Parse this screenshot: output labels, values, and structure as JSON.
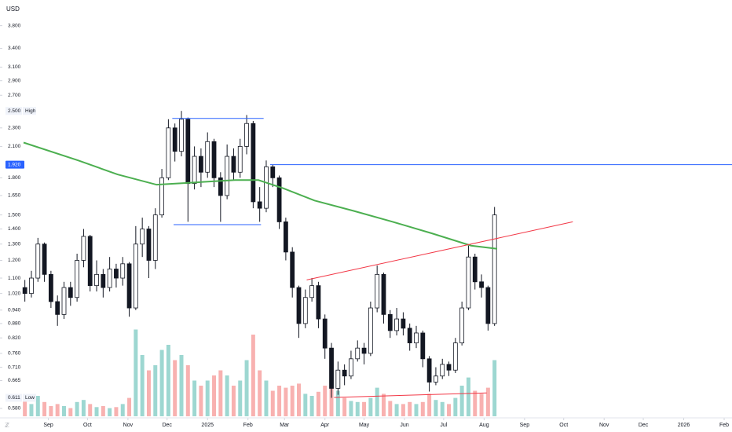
{
  "chart_data": {
    "type": "candlestick",
    "currency": "USD",
    "log_scale": true,
    "xlim": [
      -19,
      524
    ],
    "ylim": [
      0.558,
      4.31
    ],
    "yticks": [
      {
        "value": 3.8,
        "label": "3.800"
      },
      {
        "value": 3.4,
        "label": "3.400"
      },
      {
        "value": 3.1,
        "label": "3.100"
      },
      {
        "value": 2.9,
        "label": "2.900"
      },
      {
        "value": 2.7,
        "label": "2.700"
      },
      {
        "value": 2.3,
        "label": "2.300"
      },
      {
        "value": 2.1,
        "label": "2.100"
      },
      {
        "value": 1.8,
        "label": "1.800"
      },
      {
        "value": 1.65,
        "label": "1.650"
      },
      {
        "value": 1.5,
        "label": "1.500"
      },
      {
        "value": 1.4,
        "label": "1.400"
      },
      {
        "value": 1.3,
        "label": "1.300"
      },
      {
        "value": 1.2,
        "label": "1.200"
      },
      {
        "value": 1.1,
        "label": "1.100"
      },
      {
        "value": 1.02,
        "label": "1.020"
      },
      {
        "value": 0.94,
        "label": "0.940"
      },
      {
        "value": 0.88,
        "label": "0.880"
      },
      {
        "value": 0.82,
        "label": "0.820"
      },
      {
        "value": 0.76,
        "label": "0.760"
      },
      {
        "value": 0.71,
        "label": "0.710"
      },
      {
        "value": 0.665,
        "label": "0.665"
      },
      {
        "value": 0.58,
        "label": "0.580"
      }
    ],
    "xticks": [
      {
        "value": 0,
        "label": "Sep"
      },
      {
        "value": 30,
        "label": "Oct"
      },
      {
        "value": 61,
        "label": "Nov"
      },
      {
        "value": 91,
        "label": "Dec"
      },
      {
        "value": 122,
        "label": "2025"
      },
      {
        "value": 153,
        "label": "Feb"
      },
      {
        "value": 181,
        "label": "Mar"
      },
      {
        "value": 212,
        "label": "Apr"
      },
      {
        "value": 242,
        "label": "May"
      },
      {
        "value": 273,
        "label": "Jun"
      },
      {
        "value": 303,
        "label": "Jul"
      },
      {
        "value": 334,
        "label": "Aug"
      },
      {
        "value": 365,
        "label": "Sep"
      },
      {
        "value": 395,
        "label": "Oct"
      },
      {
        "value": 426,
        "label": "Nov"
      },
      {
        "value": 456,
        "label": "Dec"
      },
      {
        "value": 487,
        "label": "2026"
      },
      {
        "value": 518,
        "label": "Feb"
      }
    ],
    "x": [
      -18,
      -13,
      -8,
      -3,
      2,
      7,
      12,
      17,
      22,
      27,
      32,
      37,
      42,
      47,
      52,
      57,
      62,
      67,
      72,
      77,
      82,
      87,
      92,
      97,
      102,
      107,
      112,
      117,
      122,
      127,
      132,
      137,
      142,
      147,
      152,
      157,
      162,
      167,
      172,
      177,
      182,
      187,
      192,
      197,
      202,
      207,
      212,
      217,
      222,
      227,
      232,
      237,
      242,
      247,
      252,
      257,
      262,
      267,
      272,
      277,
      282,
      287,
      292,
      297,
      302,
      307,
      312,
      317,
      322,
      327,
      332,
      337,
      342
    ],
    "open": [
      1.05,
      1.02,
      1.1,
      1.3,
      1.12,
      0.98,
      0.92,
      1.05,
      1.0,
      1.2,
      1.35,
      1.06,
      1.12,
      1.05,
      1.15,
      1.1,
      1.18,
      0.95,
      1.3,
      1.4,
      1.2,
      1.5,
      1.8,
      2.3,
      2.05,
      2.4,
      1.75,
      2.0,
      1.85,
      2.15,
      1.8,
      1.65,
      2.0,
      1.85,
      2.1,
      2.35,
      1.6,
      1.55,
      1.9,
      1.8,
      1.45,
      1.25,
      1.05,
      0.88,
      1.0,
      1.06,
      0.9,
      0.78,
      0.64,
      0.7,
      0.68,
      0.74,
      0.78,
      0.76,
      0.95,
      1.12,
      0.92,
      0.85,
      0.9,
      0.86,
      0.8,
      0.84,
      0.74,
      0.66,
      0.68,
      0.72,
      0.7,
      0.8,
      0.95,
      1.22,
      1.08,
      1.05,
      0.88
    ],
    "high": [
      1.09,
      1.14,
      1.34,
      1.31,
      1.14,
      1.01,
      1.08,
      1.08,
      1.24,
      1.4,
      1.36,
      1.2,
      1.15,
      1.22,
      1.18,
      1.22,
      1.19,
      1.42,
      1.48,
      1.42,
      1.55,
      1.88,
      2.4,
      2.35,
      2.5,
      2.42,
      2.1,
      2.08,
      2.25,
      2.18,
      1.85,
      2.12,
      2.08,
      2.18,
      2.45,
      2.38,
      1.72,
      1.96,
      1.92,
      1.82,
      1.48,
      1.28,
      1.06,
      1.04,
      1.1,
      1.08,
      0.92,
      0.8,
      0.73,
      0.72,
      0.77,
      0.81,
      0.8,
      0.98,
      1.17,
      1.13,
      0.94,
      0.95,
      0.93,
      0.88,
      0.87,
      0.85,
      0.75,
      0.71,
      0.74,
      0.73,
      0.82,
      0.98,
      1.29,
      1.24,
      1.12,
      1.06,
      1.56
    ],
    "low": [
      0.98,
      1.0,
      1.08,
      1.08,
      0.95,
      0.87,
      0.9,
      0.96,
      0.98,
      1.16,
      1.03,
      1.03,
      1.0,
      1.03,
      1.05,
      1.06,
      0.91,
      0.94,
      1.22,
      1.1,
      1.15,
      1.48,
      1.78,
      1.95,
      2.0,
      1.45,
      1.7,
      1.72,
      1.8,
      1.72,
      1.45,
      1.62,
      1.78,
      1.8,
      2.02,
      1.55,
      1.45,
      1.52,
      1.72,
      1.4,
      1.2,
      1.0,
      0.82,
      0.86,
      0.98,
      0.86,
      0.74,
      0.611,
      0.62,
      0.65,
      0.67,
      0.73,
      0.72,
      0.75,
      0.93,
      0.88,
      0.82,
      0.83,
      0.83,
      0.77,
      0.78,
      0.71,
      0.63,
      0.65,
      0.67,
      0.68,
      0.69,
      0.79,
      0.94,
      1.04,
      1.0,
      0.85,
      0.87
    ],
    "close": [
      1.02,
      1.1,
      1.3,
      1.12,
      0.98,
      0.92,
      1.05,
      1.0,
      1.2,
      1.35,
      1.06,
      1.12,
      1.05,
      1.15,
      1.1,
      1.18,
      0.95,
      1.3,
      1.4,
      1.2,
      1.5,
      1.8,
      2.3,
      2.05,
      2.4,
      1.75,
      2.0,
      1.85,
      2.15,
      1.8,
      1.65,
      2.0,
      1.85,
      2.1,
      2.35,
      1.6,
      1.55,
      1.9,
      1.8,
      1.45,
      1.25,
      1.05,
      0.88,
      1.0,
      1.06,
      0.9,
      0.78,
      0.64,
      0.7,
      0.68,
      0.74,
      0.78,
      0.76,
      0.95,
      1.12,
      0.92,
      0.85,
      0.9,
      0.86,
      0.8,
      0.84,
      0.74,
      0.66,
      0.68,
      0.72,
      0.7,
      0.8,
      0.95,
      1.22,
      1.08,
      1.05,
      0.88,
      1.5
    ],
    "candle_up_color": "#ffffff",
    "candle_down_color": "#131722",
    "volume": [
      15,
      12,
      20,
      14,
      10,
      12,
      10,
      8,
      14,
      16,
      12,
      9,
      10,
      8,
      9,
      12,
      18,
      85,
      60,
      45,
      50,
      65,
      70,
      55,
      60,
      50,
      35,
      30,
      35,
      40,
      45,
      40,
      30,
      35,
      55,
      80,
      45,
      35,
      25,
      30,
      28,
      30,
      32,
      22,
      20,
      24,
      30,
      40,
      25,
      18,
      15,
      14,
      14,
      18,
      28,
      22,
      15,
      12,
      12,
      14,
      12,
      14,
      22,
      16,
      14,
      12,
      18,
      30,
      38,
      25,
      22,
      28,
      55
    ],
    "vlim": [
      0,
      100
    ],
    "volume_up_color": "#26a69a",
    "volume_down_color": "#ef5350",
    "ma": {
      "x": [
        -19,
        23,
        53,
        83,
        113,
        143,
        161,
        180,
        204,
        234,
        264,
        294,
        324,
        344
      ],
      "values": [
        2.14,
        1.96,
        1.83,
        1.74,
        1.76,
        1.78,
        1.78,
        1.71,
        1.61,
        1.53,
        1.45,
        1.37,
        1.29,
        1.27
      ],
      "color": "#4caf50"
    },
    "trendlines": [
      {
        "x": [
          95,
          165
        ],
        "y": [
          2.41,
          2.41
        ],
        "color": "#2962ff"
      },
      {
        "x": [
          96,
          163
        ],
        "y": [
          1.43,
          1.43
        ],
        "color": "#2962ff"
      },
      {
        "x": [
          198,
          402
        ],
        "y": [
          1.09,
          1.45
        ],
        "color": "#f23645"
      },
      {
        "x": [
          219,
          336
        ],
        "y": [
          0.612,
          0.626
        ],
        "color": "#f23645"
      }
    ],
    "price_line": {
      "value": 1.92,
      "label": "1.920",
      "x_start": 170,
      "color": "#2962ff"
    },
    "high_marker": {
      "value": 2.5,
      "label": "2.500",
      "text": "High"
    },
    "low_marker": {
      "value": 0.611,
      "label": "0.611",
      "text": "Low"
    }
  }
}
